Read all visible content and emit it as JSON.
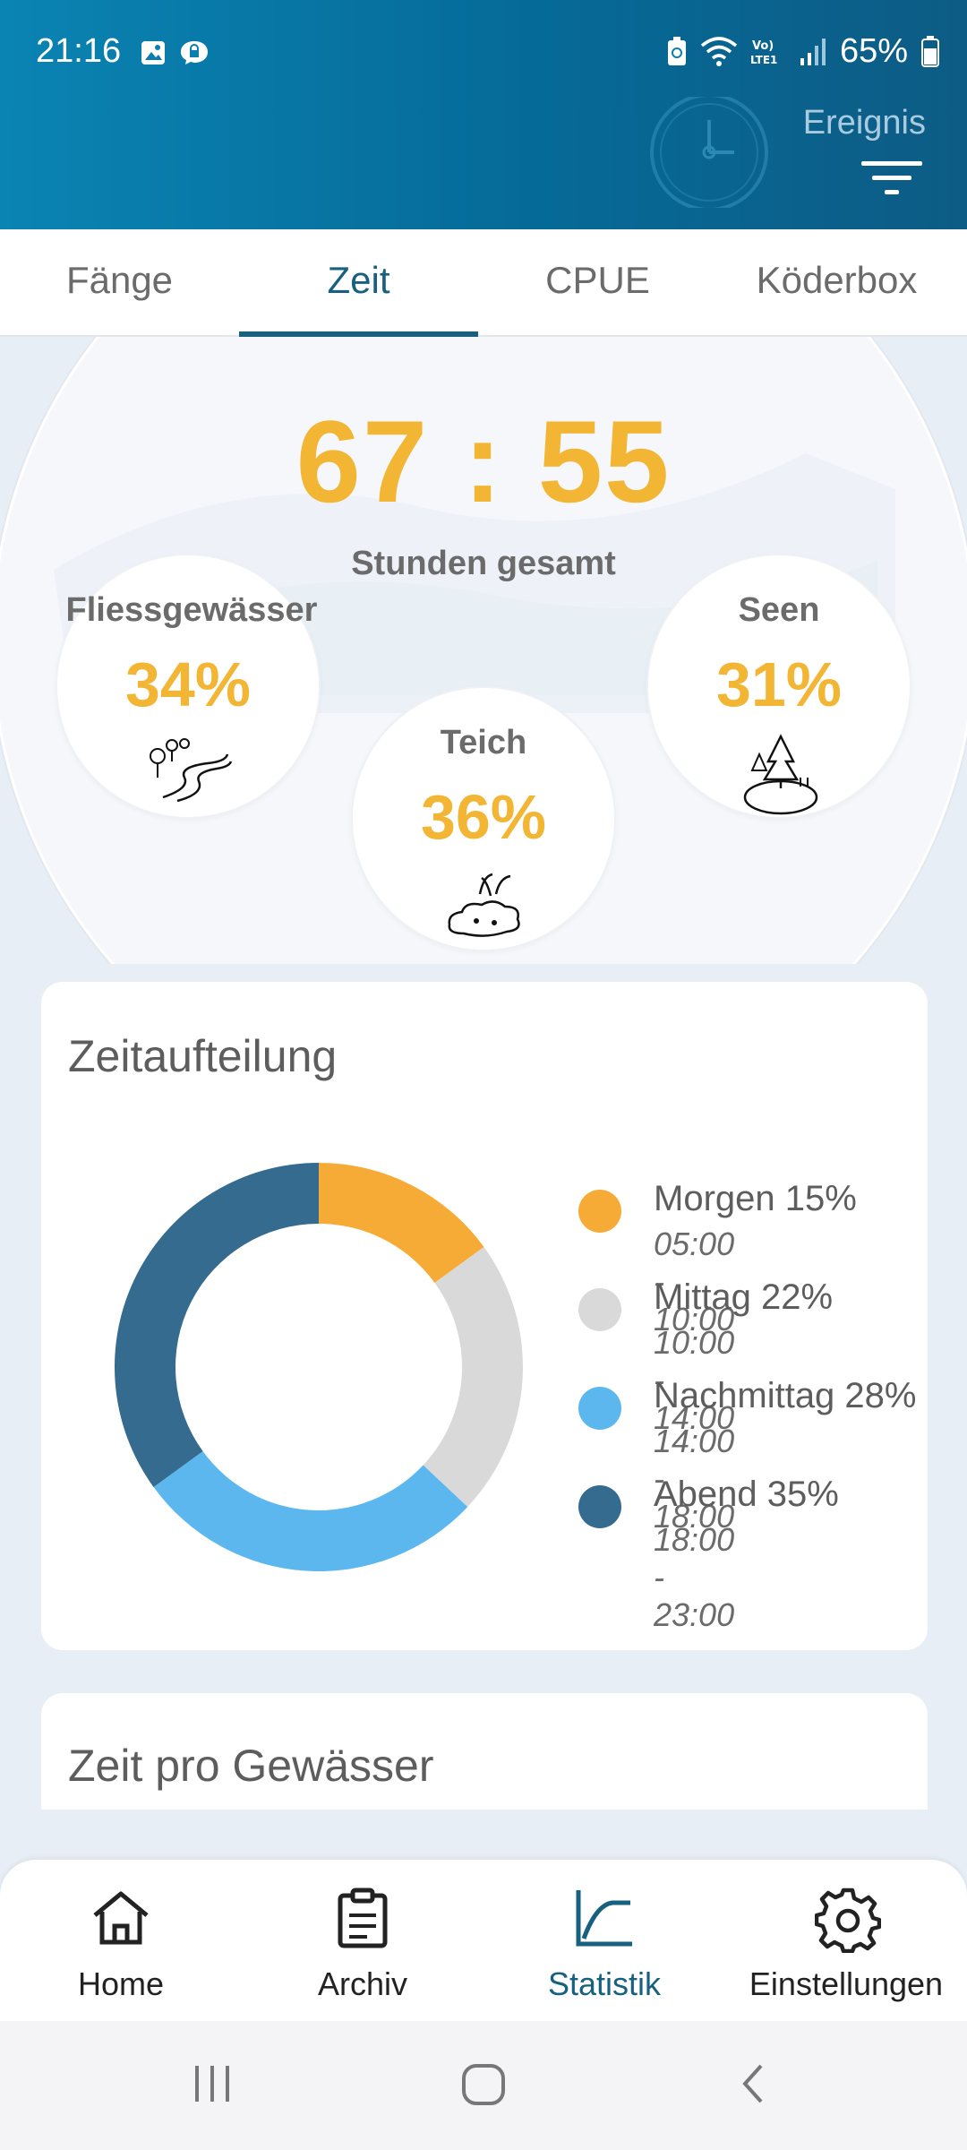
{
  "status_bar": {
    "time": "21:16",
    "battery": "65%"
  },
  "header": {
    "event_label": "Ereignis"
  },
  "tabs": [
    {
      "label": "Fänge"
    },
    {
      "label": "Zeit"
    },
    {
      "label": "CPUE"
    },
    {
      "label": "Köderbox"
    }
  ],
  "summary": {
    "total_time": "67 : 55",
    "total_label": "Stunden gesamt",
    "waters": [
      {
        "name": "Fliessgewässer",
        "percent": "34%",
        "icon": "river-icon"
      },
      {
        "name": "Teich",
        "percent": "36%",
        "icon": "pond-icon"
      },
      {
        "name": "Seen",
        "percent": "31%",
        "icon": "lake-icon"
      }
    ]
  },
  "time_split": {
    "title": "Zeitaufteilung",
    "segments": [
      {
        "label": "Morgen 15%",
        "range": "05:00 - 10:00",
        "value": 15,
        "color": "#f5ab35"
      },
      {
        "label": "Mittag 22%",
        "range": "10:00 - 14:00",
        "value": 22,
        "color": "#d9d9d9"
      },
      {
        "label": "Nachmittag 28%",
        "range": "14:00 - 18:00",
        "value": 28,
        "color": "#5db7ef"
      },
      {
        "label": "Abend 35%",
        "range": "18:00 - 23:00",
        "value": 35,
        "color": "#346b8f"
      }
    ]
  },
  "time_per_water": {
    "title": "Zeit pro Gewässer"
  },
  "bottom_nav": [
    {
      "label": "Home",
      "icon": "home-icon"
    },
    {
      "label": "Archiv",
      "icon": "clipboard-icon"
    },
    {
      "label": "Statistik",
      "icon": "chart-icon"
    },
    {
      "label": "Einstellungen",
      "icon": "gear-icon"
    }
  ]
}
